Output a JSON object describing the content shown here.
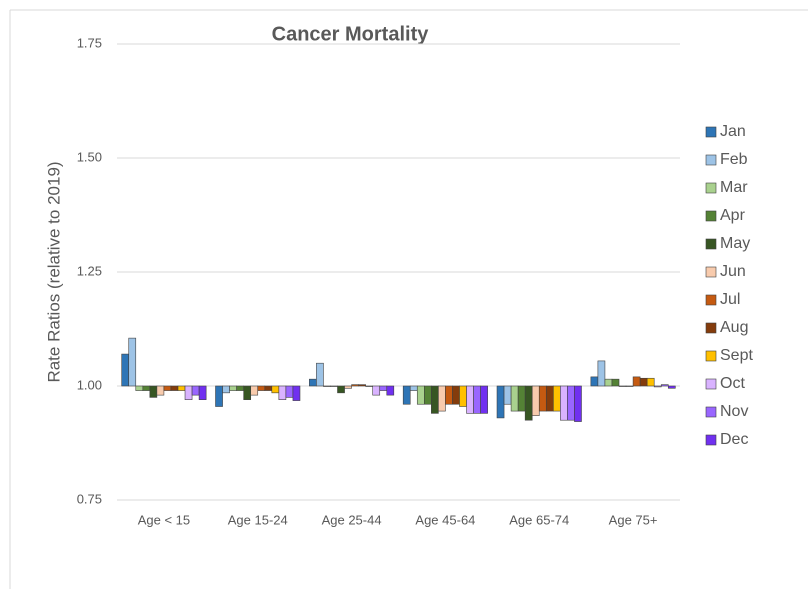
{
  "chart_data": {
    "type": "bar",
    "title": "Cancer Mortality",
    "y_label": "Rate Ratios (relative to 2019)",
    "categories": [
      "Age < 15",
      "Age 15-24",
      "Age 25-44",
      "Age 45-64",
      "Age 65-74",
      "Age 75+"
    ],
    "ylim": [
      0.75,
      1.75
    ],
    "yticks": [
      {
        "value": 0.75,
        "label": "0.75"
      },
      {
        "value": 1,
        "label": "1.00"
      },
      {
        "value": 1.25,
        "label": "1.25"
      },
      {
        "value": 1.5,
        "label": "1.50"
      },
      {
        "value": 1.75,
        "label": "1.75"
      }
    ],
    "grid": true,
    "legend": "right",
    "series": [
      {
        "name": "Jan",
        "color": "#2e75b6",
        "values": [
          1.07,
          0.955,
          1.015,
          0.96,
          0.93,
          1.02
        ]
      },
      {
        "name": "Feb",
        "color": "#9dc3e6",
        "values": [
          1.105,
          0.985,
          1.05,
          0.99,
          0.96,
          1.055
        ]
      },
      {
        "name": "Mar",
        "color": "#a9d18e",
        "values": [
          0.99,
          0.99,
          1.0,
          0.96,
          0.945,
          1.015
        ]
      },
      {
        "name": "Apr",
        "color": "#548235",
        "values": [
          0.99,
          0.99,
          1.0,
          0.96,
          0.945,
          1.015
        ]
      },
      {
        "name": "May",
        "color": "#375623",
        "values": [
          0.975,
          0.97,
          0.985,
          0.94,
          0.925,
          1.0
        ]
      },
      {
        "name": "Jun",
        "color": "#f8cbad",
        "values": [
          0.98,
          0.98,
          0.995,
          0.945,
          0.935,
          1.0
        ]
      },
      {
        "name": "Jul",
        "color": "#c55a11",
        "values": [
          0.99,
          0.99,
          1.003,
          0.96,
          0.945,
          1.02
        ]
      },
      {
        "name": "Aug",
        "color": "#843c0c",
        "values": [
          0.99,
          0.99,
          1.003,
          0.96,
          0.945,
          1.017
        ]
      },
      {
        "name": "Sept",
        "color": "#ffc000",
        "values": [
          0.99,
          0.985,
          1.0,
          0.955,
          0.945,
          1.017
        ]
      },
      {
        "name": "Oct",
        "color": "#d9b3ff",
        "values": [
          0.97,
          0.97,
          0.98,
          0.94,
          0.925,
          0.998
        ]
      },
      {
        "name": "Nov",
        "color": "#9966ff",
        "values": [
          0.98,
          0.975,
          0.99,
          0.94,
          0.925,
          1.003
        ]
      },
      {
        "name": "Dec",
        "color": "#7030f0",
        "values": [
          0.97,
          0.968,
          0.98,
          0.94,
          0.922,
          0.995
        ]
      }
    ]
  }
}
